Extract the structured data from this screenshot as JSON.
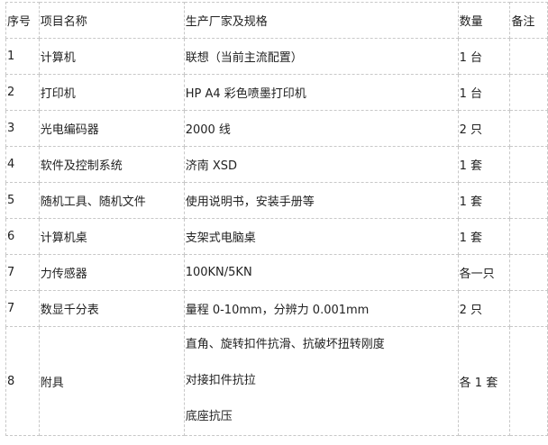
{
  "headers": [
    "序号",
    "项目名称",
    "生产厂家及规格",
    "数量",
    "备注"
  ],
  "rows": [
    {
      "no": "1",
      "name": "计算机",
      "spec": "联想（当前主流配置）",
      "qty": "1 台",
      "note": ""
    },
    {
      "no": "2",
      "name": "打印机",
      "spec": "HP A4 彩色喷墨打印机",
      "qty": "1 台",
      "note": ""
    },
    {
      "no": "3",
      "name": "光电编码器",
      "spec": "2000 线",
      "qty": "2 只",
      "note": ""
    },
    {
      "no": "4",
      "name": "软件及控制系统",
      "spec": "济南 XSD",
      "qty": "1 套",
      "note": ""
    },
    {
      "no": "5",
      "name": "随机工具、随机文件",
      "spec": "使用说明书，安装手册等",
      "qty": "1 套",
      "note": ""
    },
    {
      "no": "6",
      "name": "计算机桌",
      "spec": "支架式电脑桌",
      "qty": "1 套",
      "note": ""
    },
    {
      "no": "7",
      "name": "力传感器",
      "spec": "100KN/5KN",
      "qty": "各一只",
      "note": ""
    },
    {
      "no": "7",
      "name": "数显千分表",
      "spec": "量程 0-10mm，分辨力 0.001mm",
      "qty": "2 只",
      "note": ""
    }
  ],
  "last_row": {
    "no": "8",
    "name": "附具",
    "spec_lines": [
      "直角、旋转扣件抗滑、抗破坏扭转刚度",
      "对接扣件抗拉",
      "底座抗压"
    ],
    "qty": "各 1 套",
    "note": ""
  }
}
